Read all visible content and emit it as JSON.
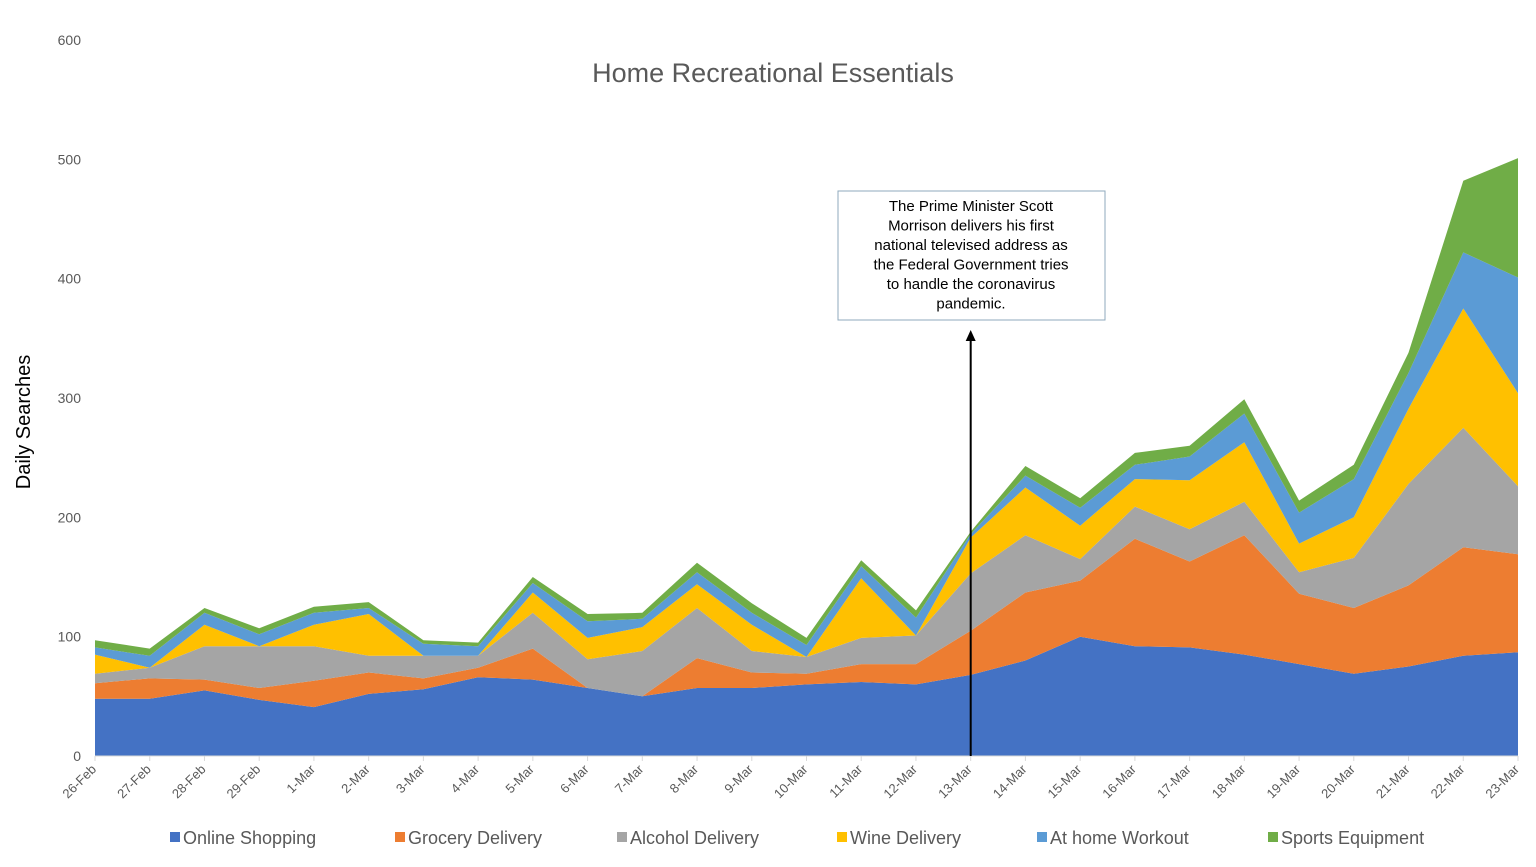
{
  "chart_data": {
    "type": "area",
    "stacked": true,
    "title": "Home Recreational Essentials",
    "ylabel": "Daily Searches",
    "xlabel": "",
    "ylim": [
      0,
      600
    ],
    "yticks": [
      0,
      100,
      200,
      300,
      400,
      500,
      600
    ],
    "grid": false,
    "legend_position": "bottom",
    "categories": [
      "26-Feb",
      "27-Feb",
      "28-Feb",
      "29-Feb",
      "1-Mar",
      "2-Mar",
      "3-Mar",
      "4-Mar",
      "5-Mar",
      "6-Mar",
      "7-Mar",
      "8-Mar",
      "9-Mar",
      "10-Mar",
      "11-Mar",
      "12-Mar",
      "13-Mar",
      "14-Mar",
      "15-Mar",
      "16-Mar",
      "17-Mar",
      "18-Mar",
      "19-Mar",
      "20-Mar",
      "21-Mar",
      "22-Mar",
      "23-Mar"
    ],
    "series": [
      {
        "name": "Online Shopping",
        "color": "#4472C4",
        "values": [
          48,
          48,
          55,
          47,
          41,
          52,
          56,
          66,
          64,
          57,
          50,
          57,
          57,
          60,
          62,
          60,
          68,
          80,
          100,
          92,
          91,
          85,
          77,
          69,
          75,
          84,
          87
        ]
      },
      {
        "name": "Grocery Delivery",
        "color": "#ED7D31",
        "values": [
          13,
          17,
          9,
          10,
          22,
          18,
          9,
          8,
          26,
          0,
          0,
          25,
          13,
          9,
          15,
          17,
          37,
          57,
          47,
          90,
          72,
          100,
          59,
          55,
          68,
          91,
          82
        ]
      },
      {
        "name": "Alcohol Delivery",
        "color": "#A5A5A5",
        "values": [
          8,
          9,
          28,
          35,
          29,
          14,
          19,
          10,
          30,
          24,
          38,
          42,
          18,
          14,
          22,
          24,
          48,
          48,
          18,
          27,
          27,
          28,
          18,
          42,
          85,
          100,
          57
        ]
      },
      {
        "name": "Wine Delivery",
        "color": "#FFC000",
        "values": [
          16,
          0,
          18,
          0,
          18,
          35,
          0,
          0,
          17,
          18,
          20,
          20,
          22,
          0,
          50,
          0,
          30,
          40,
          28,
          23,
          41,
          50,
          24,
          34,
          63,
          100,
          78
        ]
      },
      {
        "name": "At home Workout",
        "color": "#5B9BD5",
        "values": [
          6,
          10,
          10,
          10,
          10,
          5,
          10,
          8,
          8,
          14,
          7,
          10,
          10,
          10,
          10,
          15,
          3,
          10,
          15,
          12,
          20,
          24,
          26,
          32,
          30,
          47,
          97
        ]
      },
      {
        "name": "Sports Equipment",
        "color": "#70AD47",
        "values": [
          6,
          6,
          4,
          5,
          5,
          5,
          3,
          3,
          5,
          6,
          5,
          8,
          8,
          6,
          5,
          6,
          2,
          8,
          8,
          10,
          9,
          12,
          10,
          12,
          17,
          60,
          100
        ]
      }
    ],
    "annotations": [
      {
        "text": "The Prime Minister Scott Morrison delivers his first national televised address as the Federal Government tries to handle the coronavirus pandemic.",
        "x": "13-Mar"
      }
    ]
  }
}
